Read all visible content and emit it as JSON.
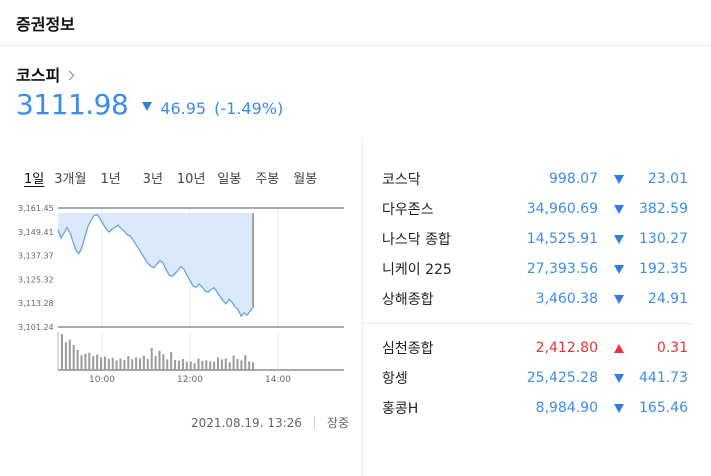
{
  "header": {
    "title": "증권정보"
  },
  "index": {
    "name": "코스피",
    "price": "3111.98",
    "change": "46.95",
    "change_pct": "(-1.49%)",
    "direction": "down"
  },
  "tabs": [
    {
      "label": "1일",
      "active": true
    },
    {
      "label": "3개월"
    },
    {
      "label": "1년"
    },
    {
      "label": "3년"
    },
    {
      "label": "10년"
    },
    {
      "label": "일봉"
    },
    {
      "label": "주봉"
    },
    {
      "label": "월봉"
    }
  ],
  "chart_data": {
    "type": "line",
    "y_ticks": [
      "3,161.45",
      "3,149.41",
      "3,137.37",
      "3,125.32",
      "3,113.28",
      "3,101.24"
    ],
    "ylim": [
      3101.24,
      3161.45
    ],
    "x_ticks": [
      "10:00",
      "12:00",
      "14:00"
    ],
    "prev_close": 3158.93,
    "x_start": "09:00",
    "x_end": "15:30",
    "series": [
      {
        "values": [
          3150.5,
          3146.2,
          3148.8,
          3151.6,
          3149.0,
          3144.3,
          3140.1,
          3138.4,
          3141.7,
          3147.0,
          3152.2,
          3155.0,
          3157.6,
          3158.0,
          3156.3,
          3153.5,
          3151.0,
          3149.2,
          3150.7,
          3151.7,
          3152.8,
          3151.1,
          3149.8,
          3148.1,
          3147.3,
          3145.2,
          3142.9,
          3140.6,
          3138.2,
          3135.7,
          3133.4,
          3132.0,
          3131.2,
          3133.2,
          3135.0,
          3133.6,
          3130.5,
          3127.6,
          3126.9,
          3128.2,
          3130.0,
          3131.8,
          3130.5,
          3127.3,
          3124.8,
          3122.0,
          3121.3,
          3123.0,
          3121.7,
          3119.4,
          3118.8,
          3120.2,
          3121.1,
          3118.9,
          3116.6,
          3114.5,
          3113.0,
          3115.3,
          3113.8,
          3111.3,
          3110.1,
          3106.7,
          3108.4,
          3107.2,
          3109.3,
          3111.2
        ]
      }
    ],
    "volume": [
      7.5,
      5.8,
      6.3,
      5.2,
      4.2,
      3.1,
      3.4,
      3.6,
      2.9,
      3.2,
      2.6,
      2.8,
      2.3,
      2.5,
      2.0,
      2.4,
      2.1,
      2.9,
      2.2,
      2.6,
      2.4,
      3.0,
      2.3,
      4.6,
      2.9,
      4.0,
      3.3,
      2.2,
      3.7,
      2.1,
      1.9,
      2.3,
      1.7,
      1.8,
      1.4,
      2.4,
      1.9,
      2.0,
      1.8,
      1.7,
      2.6,
      2.2,
      2.4,
      1.6,
      3.0,
      2.3,
      2.0,
      3.1,
      1.8,
      1.6
    ],
    "line_color": "#5c9ee8",
    "fill_color": "#dbe9fa"
  },
  "footer": {
    "timestamp": "2021.08.19. 13:26",
    "status": "장중"
  },
  "markets": {
    "group1": [
      {
        "name": "코스닥",
        "value": "998.07",
        "change": "23.01",
        "direction": "down"
      },
      {
        "name": "다우존스",
        "value": "34,960.69",
        "change": "382.59",
        "direction": "down"
      },
      {
        "name": "나스닥 종합",
        "value": "14,525.91",
        "change": "130.27",
        "direction": "down"
      },
      {
        "name": "니케이 225",
        "value": "27,393.56",
        "change": "192.35",
        "direction": "down"
      },
      {
        "name": "상해종합",
        "value": "3,460.38",
        "change": "24.91",
        "direction": "down"
      }
    ],
    "group2": [
      {
        "name": "심천종합",
        "value": "2,412.80",
        "change": "0.31",
        "direction": "up"
      },
      {
        "name": "항셍",
        "value": "25,425.28",
        "change": "441.73",
        "direction": "down"
      },
      {
        "name": "홍콩H",
        "value": "8,984.90",
        "change": "165.46",
        "direction": "down"
      }
    ]
  }
}
